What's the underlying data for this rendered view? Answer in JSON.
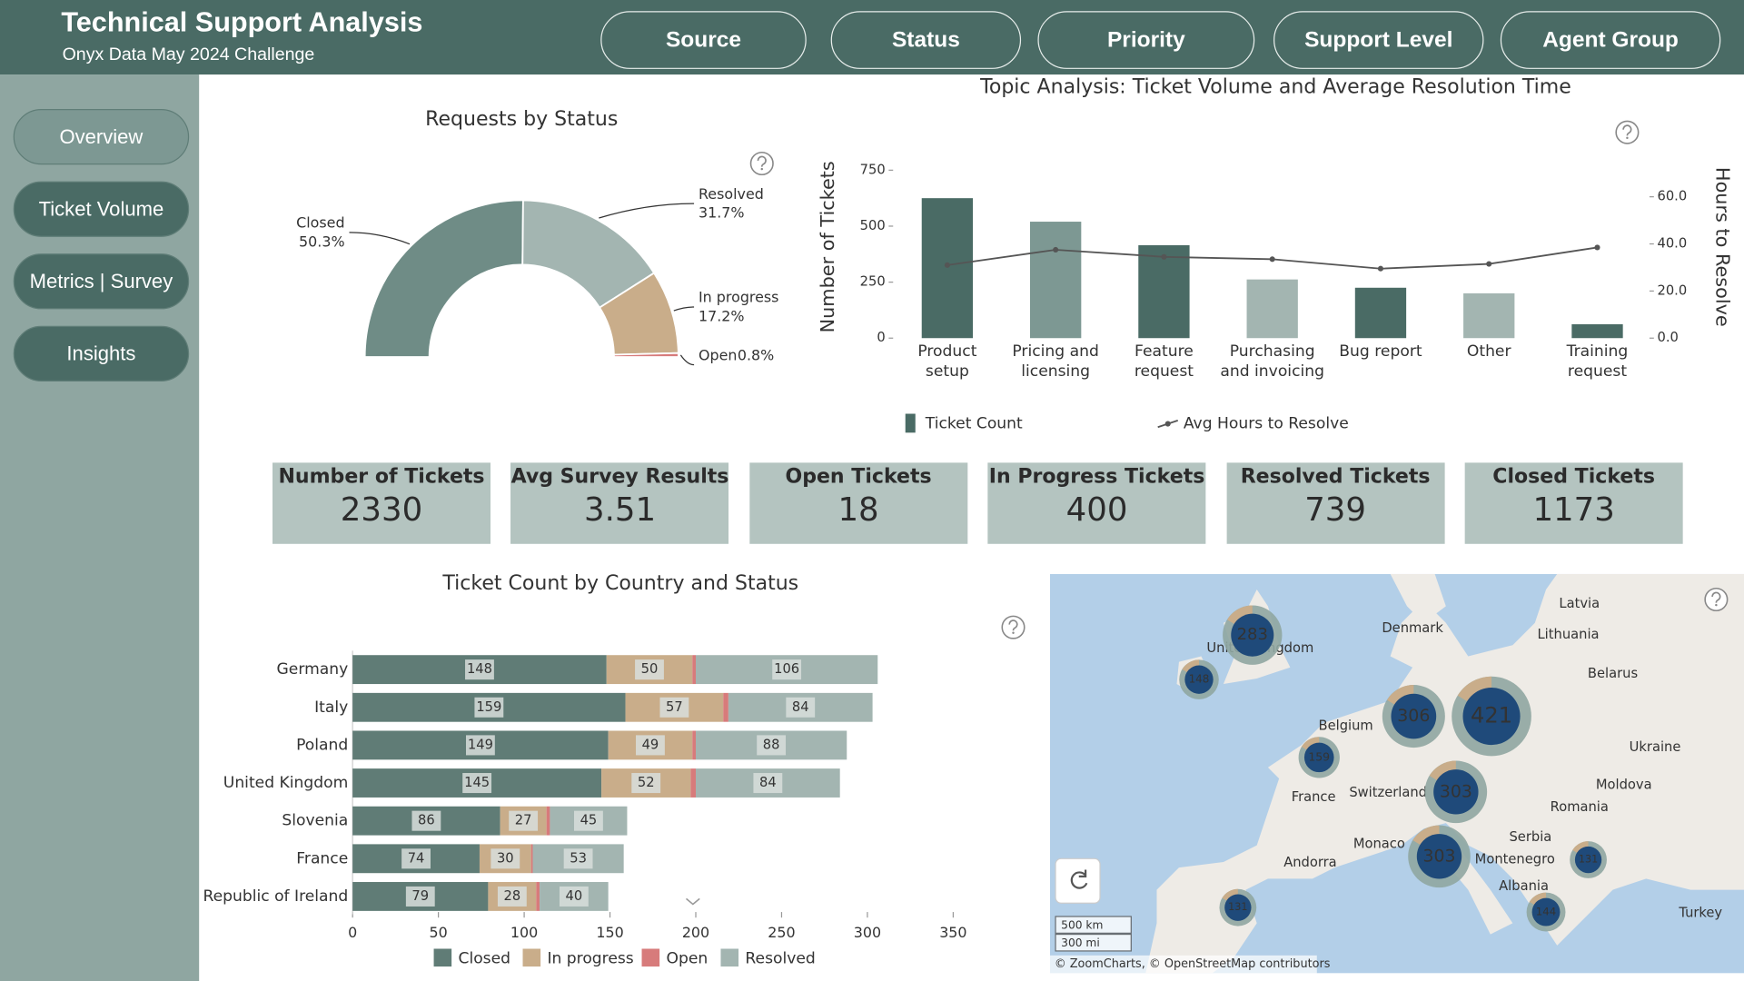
{
  "header": {
    "title": "Technical Support Analysis",
    "subtitle": "Onyx Data May 2024 Challenge"
  },
  "filters": [
    "Source",
    "Status",
    "Priority",
    "Support Level",
    "Agent Group"
  ],
  "nav": [
    "Overview",
    "Ticket Volume",
    "Metrics | Survey",
    "Insights"
  ],
  "kpis": [
    {
      "label": "Number of Tickets",
      "value": 2330
    },
    {
      "label": "Avg Survey Results",
      "value": 3.51
    },
    {
      "label": "Open Tickets",
      "value": 18
    },
    {
      "label": "In Progress Tickets",
      "value": 400
    },
    {
      "label": "Resolved Tickets",
      "value": 739
    },
    {
      "label": "Closed Tickets",
      "value": 1173
    }
  ],
  "chart_data": [
    {
      "type": "pie",
      "title": "Requests by Status",
      "categories": [
        "Closed",
        "Resolved",
        "In progress",
        "Open"
      ],
      "values": [
        50.3,
        31.7,
        17.2,
        0.8
      ],
      "value_labels": [
        "50.3%",
        "31.7%",
        "17.2%",
        "0.8%"
      ],
      "colors": [
        "#6f8c86",
        "#a3b5b1",
        "#c9ad8a",
        "#d77b7b"
      ]
    },
    {
      "type": "combo",
      "title": "Topic Analysis: Ticket Volume and Average Resolution Time",
      "categories": [
        "Product setup",
        "Pricing and licensing",
        "Feature request",
        "Purchasing and invoicing",
        "Bug report",
        "Other",
        "Training request"
      ],
      "series": [
        {
          "name": "Ticket Count",
          "type": "bar",
          "colors": [
            "#4a6b65",
            "#7d9893",
            "#4a6b65",
            "#a3b5b1",
            "#4a6b65",
            "#a3b5b1",
            "#4a6b65"
          ],
          "values": [
            625,
            520,
            415,
            262,
            225,
            200,
            62
          ]
        },
        {
          "name": "Avg Hours to Resolve",
          "type": "line",
          "axis": "y2",
          "color": "#555555",
          "values": [
            31,
            37.5,
            34.5,
            33.5,
            29.5,
            31.5,
            38.5
          ]
        }
      ],
      "ylabel": "Number of Tickets",
      "y2label": "Hours to Resolve",
      "ylim": [
        0,
        750
      ],
      "yticks": [
        0,
        250,
        500,
        750
      ],
      "y2lim": [
        0,
        71.3
      ],
      "y2ticks": [
        {
          "value": 0,
          "label": "0.0"
        },
        {
          "value": 20,
          "label": "20.0"
        },
        {
          "value": 40,
          "label": "40.0"
        },
        {
          "value": 60,
          "label": "60.0"
        }
      ]
    },
    {
      "type": "stacked_bar",
      "orientation": "horizontal",
      "title": "Ticket Count by Country and Status",
      "categories": [
        "Germany",
        "Italy",
        "Poland",
        "United Kingdom",
        "Slovenia",
        "France",
        "Republic of Ireland"
      ],
      "series": [
        {
          "name": "Closed",
          "color": "#607c76",
          "show_labels": true,
          "values": [
            148,
            159,
            149,
            145,
            86,
            74,
            79
          ]
        },
        {
          "name": "In progress",
          "color": "#c9ad8a",
          "show_labels": true,
          "values": [
            50,
            57,
            49,
            52,
            27,
            30,
            28
          ]
        },
        {
          "name": "Open",
          "color": "#d77b7b",
          "show_labels": false,
          "values": [
            2,
            3,
            2,
            3,
            2,
            1,
            2
          ]
        },
        {
          "name": "Resolved",
          "color": "#a3b5b1",
          "show_labels": true,
          "values": [
            106,
            84,
            88,
            84,
            45,
            53,
            40
          ]
        }
      ],
      "xlim": [
        0,
        350
      ],
      "xticks": [
        0,
        50,
        100,
        150,
        200,
        250,
        300,
        350
      ]
    }
  ],
  "map": {
    "clusters": [
      283,
      148,
      306,
      421,
      159,
      303,
      303,
      131,
      131,
      144
    ],
    "places": [
      "Latvia",
      "Lithuania",
      "Denmark",
      "Belarus",
      "United Kingdom",
      "Ukraine",
      "Belgium",
      "France",
      "Switzerland",
      "Moldova",
      "Romania",
      "Serbia",
      "Monaco",
      "Andorra",
      "Montenegro",
      "Albania",
      "Turkey"
    ],
    "scale": [
      "500 km",
      "300 mi"
    ],
    "attribution": "© ZoomCharts, © OpenStreetMap contributors"
  }
}
